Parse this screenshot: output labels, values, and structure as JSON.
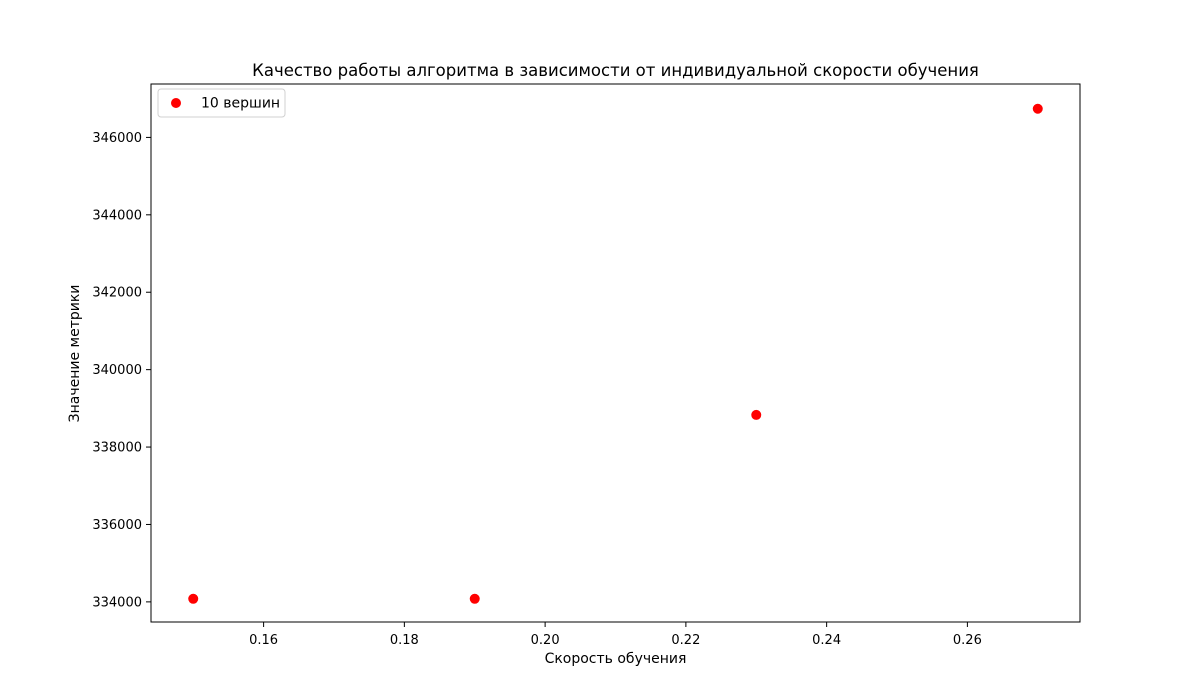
{
  "chart_data": {
    "type": "scatter",
    "title": "Качество работы алгоритма в зависимости от индивидуальной скорости обучения",
    "xlabel": "Скорость обучения",
    "ylabel": "Значение метрики",
    "xlim": [
      0.144,
      0.276
    ],
    "ylim": [
      333480,
      347380
    ],
    "xticks": [
      0.16,
      0.18,
      0.2,
      0.22,
      0.24,
      0.26
    ],
    "xtick_labels": [
      "0.16",
      "0.18",
      "0.20",
      "0.22",
      "0.24",
      "0.26"
    ],
    "yticks": [
      334000,
      336000,
      338000,
      340000,
      342000,
      344000,
      346000
    ],
    "ytick_labels": [
      "334000",
      "336000",
      "338000",
      "340000",
      "342000",
      "344000",
      "346000"
    ],
    "grid": false,
    "legend_position": "top-left",
    "series": [
      {
        "name": "10 вершин",
        "color": "#ff0000",
        "marker": "circle",
        "x": [
          0.15,
          0.19,
          0.23,
          0.27
        ],
        "y": [
          334080,
          334080,
          338830,
          346740
        ]
      }
    ]
  }
}
